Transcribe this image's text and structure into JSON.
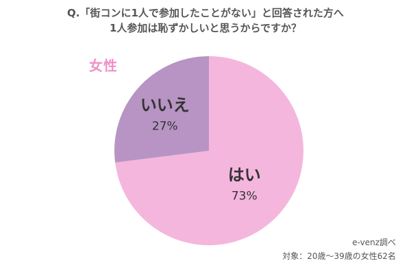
{
  "chart_data": {
    "type": "pie",
    "title": "Q.「街コンに1人で参加したことがない」と回答された方へ",
    "subtitle": "1人参加は恥ずかしいと思うからですか？",
    "group_label": "女性",
    "categories": [
      "はい",
      "いいえ"
    ],
    "values": [
      73,
      27
    ],
    "value_labels": [
      "73%",
      "27%"
    ],
    "colors": [
      "#f4b6dc",
      "#b794c3"
    ],
    "legend": "none",
    "source": "e-venz調べ",
    "note": "対象：20歳〜39歳の女性62名"
  }
}
